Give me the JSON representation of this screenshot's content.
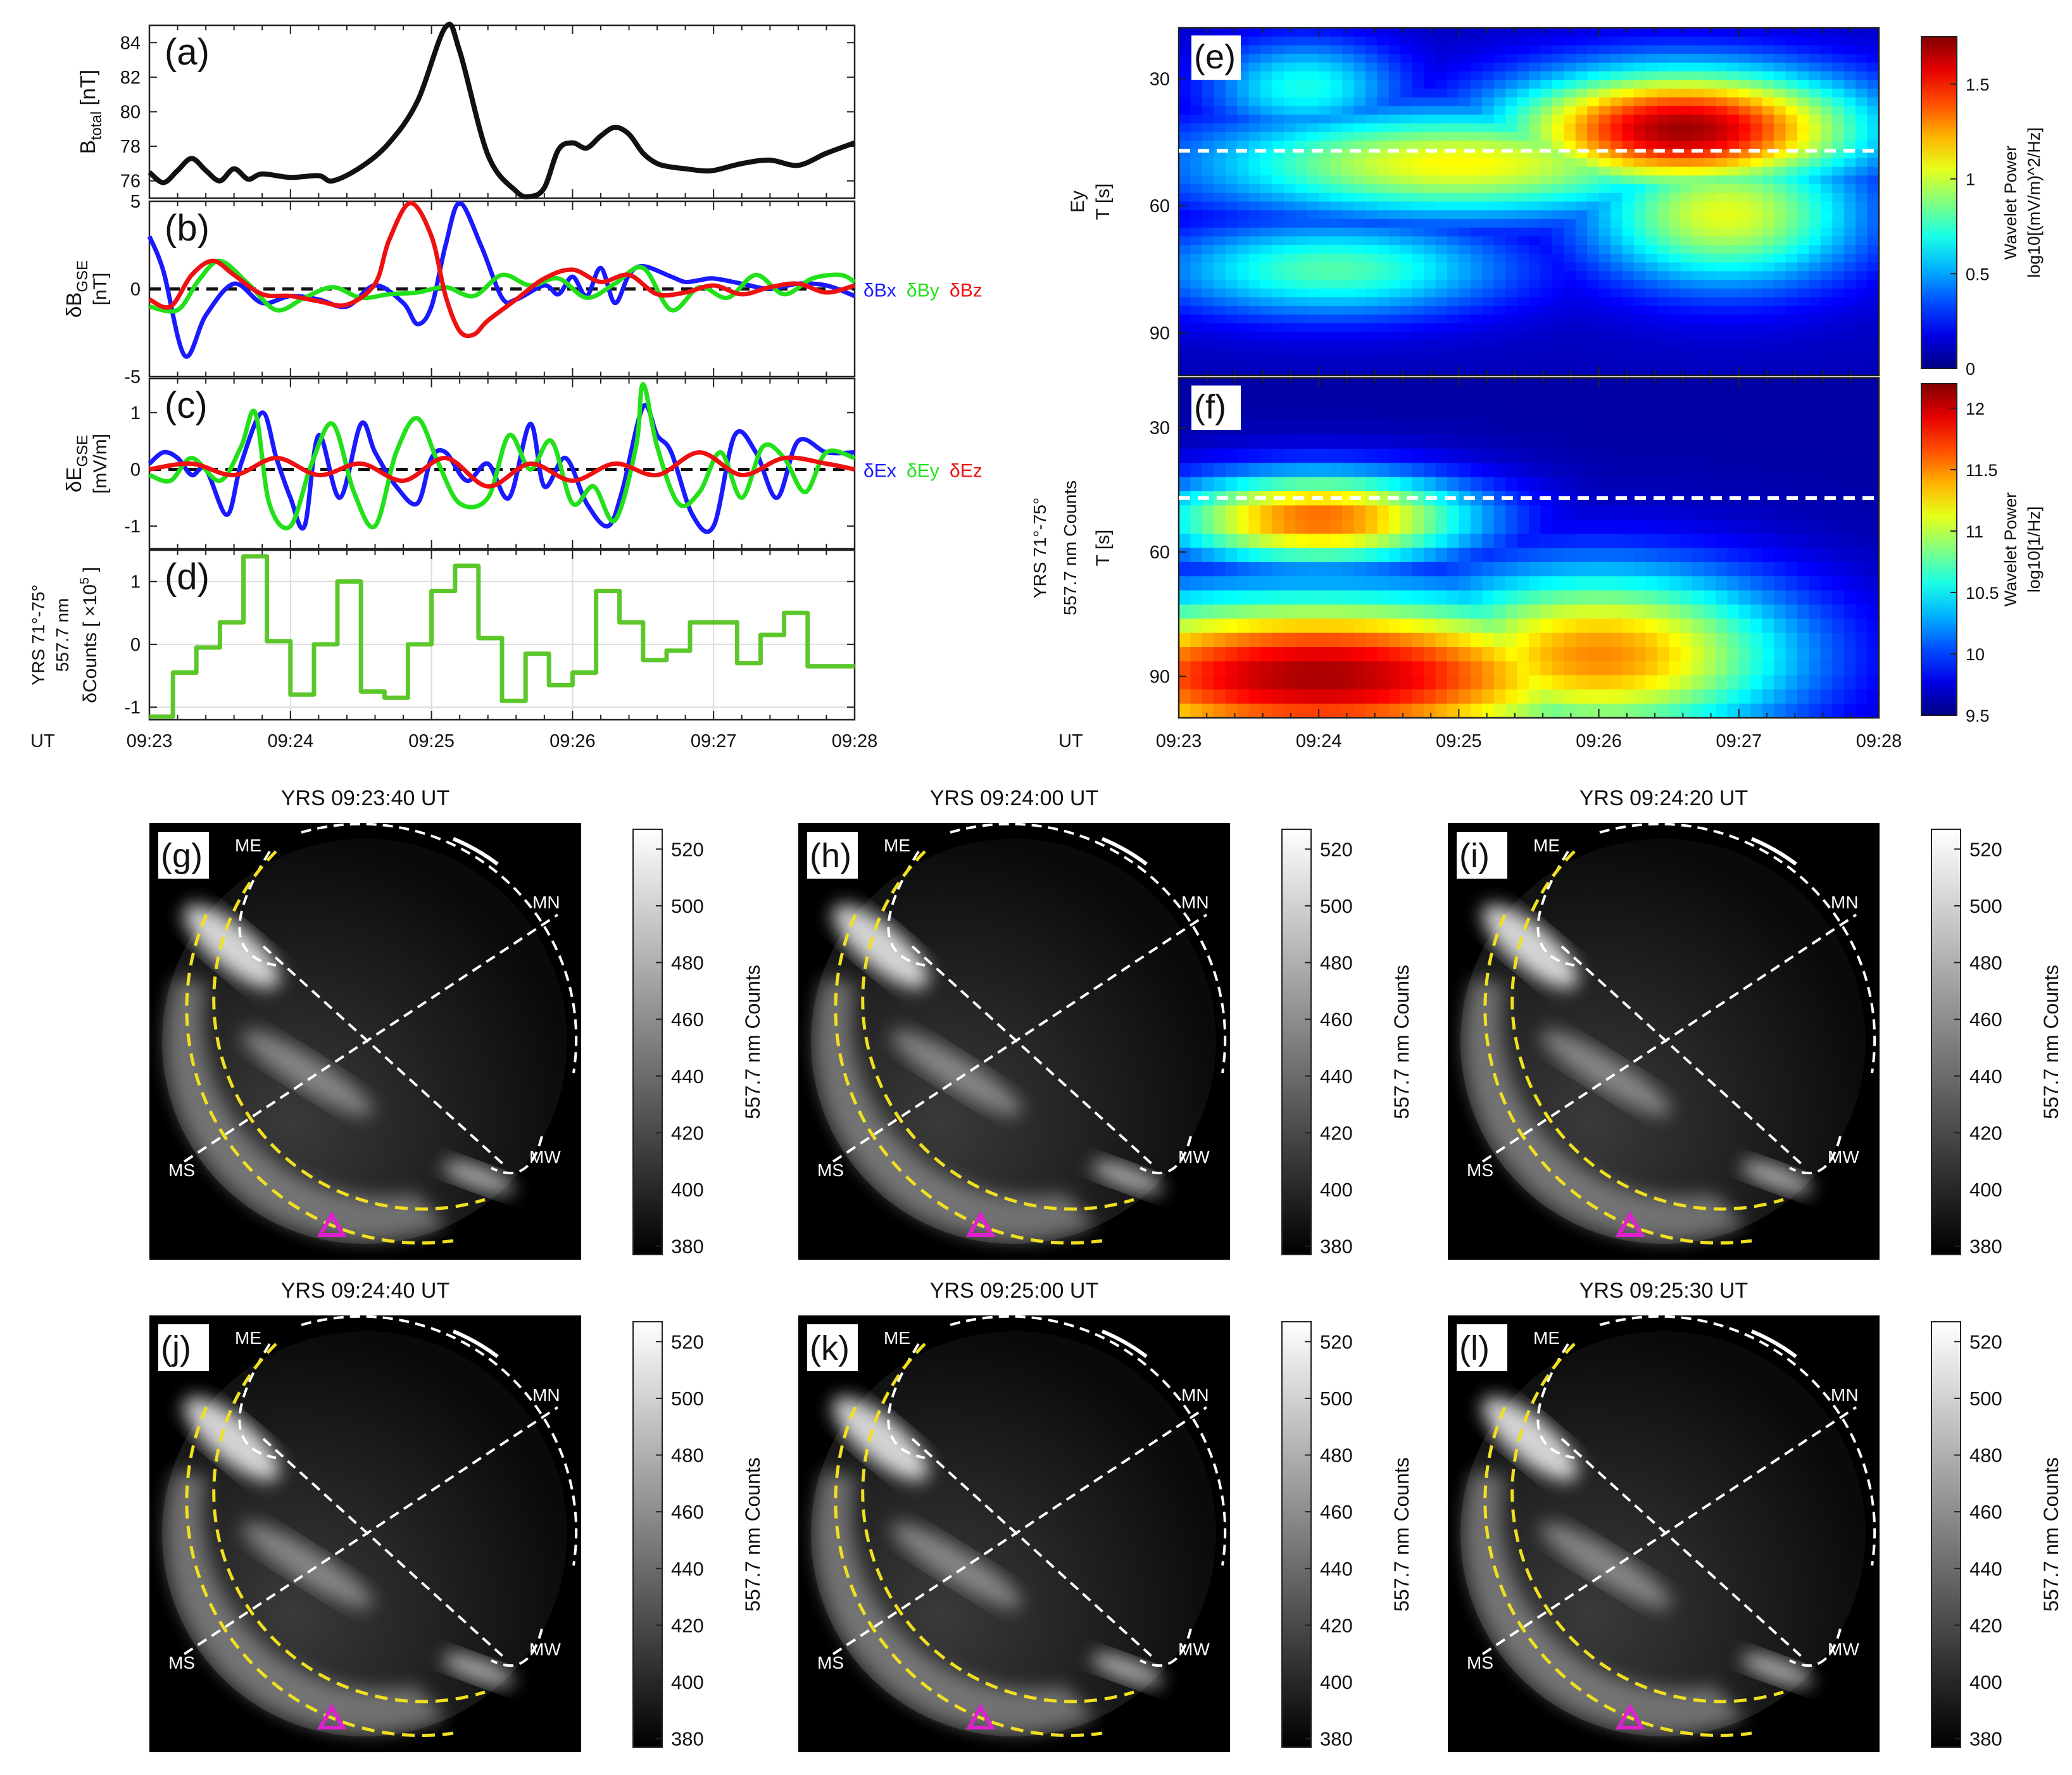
{
  "colors": {
    "black": "#111111",
    "blue": "#1a1aff",
    "green": "#22e01a",
    "red": "#ee1111",
    "counts_green": "#5cc72a",
    "yellow": "#f0e020",
    "magenta": "#e020d0"
  },
  "time_axis": {
    "ticks": [
      "09:23",
      "09:24",
      "09:25",
      "09:26",
      "09:27",
      "09:28"
    ],
    "label": "UT",
    "range_min": [
      0,
      5
    ]
  },
  "chart_data": [
    {
      "id": "a",
      "type": "line",
      "panel_label": "(a)",
      "ylabel": "B_total [nT]",
      "ylabel_main": "B",
      "ylabel_sub": "total",
      "ylabel_unit": "[nT]",
      "ylim": [
        75,
        85
      ],
      "yticks": [
        "76",
        "78",
        "80",
        "82",
        "84"
      ],
      "ytick_values": [
        76,
        78,
        80,
        82,
        84
      ],
      "series": [
        {
          "name": "Btotal",
          "color": "#111111",
          "x": [
            0,
            0.1,
            0.2,
            0.3,
            0.4,
            0.5,
            0.6,
            0.7,
            0.8,
            1.0,
            1.2,
            1.3,
            1.5,
            1.7,
            1.9,
            2.1,
            2.2,
            2.4,
            2.6,
            2.7,
            2.8,
            2.9,
            3.0,
            3.1,
            3.2,
            3.3,
            3.4,
            3.5,
            3.6,
            3.7,
            3.8,
            3.9,
            4.0,
            4.2,
            4.4,
            4.6,
            4.8,
            5.0
          ],
          "y": [
            76.5,
            75.9,
            76.6,
            77.3,
            76.6,
            76.0,
            76.7,
            76.1,
            76.4,
            76.2,
            76.3,
            76.0,
            76.8,
            78.2,
            80.6,
            84.9,
            83.5,
            77.5,
            75.4,
            75.1,
            75.6,
            77.8,
            78.2,
            77.9,
            78.6,
            79.1,
            78.7,
            77.6,
            77.0,
            76.8,
            76.7,
            76.6,
            76.6,
            77.0,
            77.2,
            76.9,
            77.6,
            78.2
          ]
        }
      ]
    },
    {
      "id": "b",
      "type": "line",
      "panel_label": "(b)",
      "ylabel": "δB_GSE [nT]",
      "ylabel_main": "δB",
      "ylabel_sub": "GSE",
      "ylabel_unit": "[nT]",
      "ylim": [
        -5,
        5
      ],
      "yticks": [
        "5",
        "0",
        "-5"
      ],
      "ytick_values": [
        5,
        0,
        -5
      ],
      "legend": [
        "δBx",
        "δBy",
        "δBz"
      ],
      "series": [
        {
          "name": "δBx",
          "color": "#1a1aff",
          "x": [
            0,
            0.1,
            0.25,
            0.4,
            0.6,
            0.8,
            1.0,
            1.2,
            1.4,
            1.6,
            1.8,
            1.9,
            2.0,
            2.1,
            2.2,
            2.35,
            2.5,
            2.6,
            2.8,
            2.9,
            3.0,
            3.1,
            3.2,
            3.3,
            3.4,
            3.5,
            3.7,
            3.8,
            3.9,
            4.0,
            4.2,
            4.4,
            4.6,
            4.8,
            5.0
          ],
          "y": [
            3.0,
            1.0,
            -3.8,
            -1.5,
            0.3,
            -0.8,
            -0.4,
            -0.6,
            -1.0,
            0.2,
            -0.8,
            -2.0,
            -1.0,
            2.5,
            4.9,
            2.5,
            -0.5,
            -0.6,
            0.2,
            -0.3,
            0.7,
            -0.4,
            1.2,
            -0.8,
            0.8,
            1.3,
            0.7,
            0.4,
            0.5,
            0.6,
            0.3,
            0.0,
            0.3,
            0.2,
            -0.4
          ]
        },
        {
          "name": "δBy",
          "color": "#22e01a",
          "x": [
            0,
            0.2,
            0.35,
            0.5,
            0.7,
            0.9,
            1.1,
            1.3,
            1.5,
            1.7,
            1.9,
            2.1,
            2.3,
            2.5,
            2.7,
            2.9,
            3.1,
            3.3,
            3.5,
            3.7,
            3.9,
            4.1,
            4.3,
            4.5,
            4.7,
            4.9,
            5.0
          ],
          "y": [
            -1.0,
            -1.2,
            0.5,
            1.6,
            0.3,
            -1.2,
            -0.5,
            0.1,
            -0.5,
            -0.3,
            -0.2,
            0.1,
            -0.4,
            0.8,
            0.2,
            0.6,
            -0.5,
            0.3,
            1.2,
            -1.2,
            0.1,
            -0.5,
            0.8,
            -0.3,
            0.6,
            0.8,
            0.4
          ]
        },
        {
          "name": "δBz",
          "color": "#ee1111",
          "x": [
            0,
            0.15,
            0.3,
            0.45,
            0.6,
            0.8,
            1.0,
            1.2,
            1.4,
            1.6,
            1.7,
            1.85,
            2.0,
            2.1,
            2.2,
            2.3,
            2.4,
            2.6,
            2.8,
            3.0,
            3.2,
            3.4,
            3.6,
            3.8,
            4.0,
            4.2,
            4.4,
            4.6,
            4.8,
            5.0
          ],
          "y": [
            -0.6,
            -1.0,
            0.8,
            1.6,
            0.8,
            -0.3,
            -0.4,
            -0.7,
            -0.9,
            0.3,
            2.8,
            4.9,
            3.0,
            -0.4,
            -2.4,
            -2.6,
            -1.8,
            -0.6,
            0.6,
            1.1,
            0.4,
            0.8,
            -0.3,
            -0.2,
            0.2,
            -0.3,
            0.1,
            0.3,
            -0.2,
            0.2
          ]
        }
      ]
    },
    {
      "id": "c",
      "type": "line",
      "panel_label": "(c)",
      "ylabel": "δE_GSE [mV/m]",
      "ylabel_main": "δE",
      "ylabel_sub": "GSE",
      "ylabel_unit": "[mV/m]",
      "ylim": [
        -1.4,
        1.6
      ],
      "yticks": [
        "1",
        "0",
        "-1"
      ],
      "ytick_values": [
        1,
        0,
        -1
      ],
      "legend": [
        "δEx",
        "δEy",
        "δEz"
      ],
      "series": [
        {
          "name": "δEx",
          "color": "#1a1aff",
          "x": [
            0,
            0.1,
            0.2,
            0.3,
            0.4,
            0.55,
            0.65,
            0.8,
            0.9,
            1.0,
            1.1,
            1.2,
            1.35,
            1.5,
            1.6,
            1.75,
            1.9,
            2.0,
            2.1,
            2.25,
            2.4,
            2.55,
            2.7,
            2.8,
            2.95,
            3.1,
            3.25,
            3.35,
            3.5,
            3.6,
            3.7,
            3.85,
            4.0,
            4.15,
            4.3,
            4.45,
            4.6,
            4.8,
            5.0
          ],
          "y": [
            0.1,
            0.3,
            0.2,
            -0.1,
            0.0,
            -0.8,
            0.1,
            1.0,
            0.2,
            -0.5,
            -1.0,
            0.6,
            -0.5,
            0.8,
            0.3,
            -0.3,
            -0.6,
            0.2,
            0.3,
            -0.2,
            0.1,
            -0.5,
            0.8,
            -0.3,
            0.2,
            -0.6,
            -1.0,
            -0.4,
            1.1,
            0.6,
            0.3,
            -0.8,
            -1.0,
            0.6,
            0.3,
            -0.5,
            0.5,
            0.3,
            0.3
          ]
        },
        {
          "name": "δEy",
          "color": "#22e01a",
          "x": [
            0,
            0.15,
            0.3,
            0.5,
            0.65,
            0.75,
            0.85,
            1.0,
            1.15,
            1.3,
            1.45,
            1.6,
            1.75,
            1.9,
            2.05,
            2.2,
            2.4,
            2.55,
            2.7,
            2.85,
            3.0,
            3.15,
            3.3,
            3.45,
            3.5,
            3.6,
            3.75,
            3.9,
            4.05,
            4.2,
            4.35,
            4.5,
            4.65,
            4.8,
            5.0
          ],
          "y": [
            -0.1,
            -0.2,
            0.2,
            -0.2,
            0.4,
            1.0,
            -0.6,
            -1.0,
            0.1,
            0.8,
            -0.4,
            -1.0,
            0.3,
            0.9,
            0.1,
            -0.6,
            -0.5,
            0.6,
            0.0,
            0.5,
            -0.6,
            -0.3,
            -0.9,
            0.4,
            1.5,
            0.4,
            -0.6,
            -0.4,
            0.3,
            -0.5,
            0.4,
            0.2,
            -0.4,
            0.3,
            0.2
          ]
        },
        {
          "name": "δEz",
          "color": "#ee1111",
          "x": [
            0,
            0.3,
            0.6,
            0.9,
            1.2,
            1.5,
            1.8,
            2.1,
            2.4,
            2.7,
            3.0,
            3.3,
            3.6,
            3.9,
            4.2,
            4.5,
            4.8,
            5.0
          ],
          "y": [
            0.0,
            0.1,
            -0.1,
            0.2,
            -0.1,
            0.1,
            -0.2,
            0.2,
            -0.3,
            0.1,
            -0.2,
            0.1,
            -0.1,
            0.3,
            -0.1,
            0.2,
            0.1,
            0.0
          ]
        }
      ]
    },
    {
      "id": "d",
      "type": "line",
      "panel_label": "(d)",
      "ylabel": "YRS 71°-75° 557.7 nm δCounts [×10^5]",
      "ylabel_line1": "YRS 71°-75°",
      "ylabel_line2": "557.7 nm",
      "ylabel_line3": "δCounts [ ×10",
      "ylim": [
        -1.2,
        1.5
      ],
      "yticks": [
        "1",
        "0",
        "-1"
      ],
      "ytick_values": [
        1,
        0,
        -1
      ],
      "step": true,
      "series": [
        {
          "name": "δCounts",
          "color": "#5cc72a",
          "x": [
            0,
            0.167,
            0.333,
            0.5,
            0.667,
            0.833,
            1.0,
            1.167,
            1.333,
            1.5,
            1.667,
            1.833,
            2.0,
            2.167,
            2.333,
            2.5,
            2.667,
            2.833,
            3.0,
            3.167,
            3.333,
            3.5,
            3.667,
            3.833,
            4.0,
            4.167,
            4.333,
            4.5,
            4.667,
            4.833,
            5.0
          ],
          "y": [
            -1.15,
            -0.45,
            -0.05,
            0.35,
            1.4,
            0.05,
            -0.8,
            0.0,
            1.0,
            -0.75,
            -0.85,
            0.0,
            0.85,
            1.25,
            0.1,
            -0.9,
            -0.15,
            -0.65,
            -0.45,
            0.85,
            0.35,
            -0.25,
            -0.1,
            0.35,
            0.35,
            -0.3,
            0.15,
            0.5,
            -0.35,
            -0.35,
            -0.35
          ]
        }
      ]
    },
    {
      "id": "e",
      "type": "heatmap",
      "panel_label": "(e)",
      "ylabel_line1": "Ey",
      "ylabel_line2": "T [s]",
      "yticks": [
        "30",
        "60",
        "90"
      ],
      "ytick_values": [
        30,
        60,
        90
      ],
      "ylim": [
        18,
        100
      ],
      "dashed_period_s": 47,
      "colorbar": {
        "title_line1": "Wavelet Power",
        "title_line2": "log10[(mV/m)^2/Hz]",
        "ticks": [
          "1.5",
          "1",
          "0.5",
          "0"
        ],
        "tick_values": [
          1.5,
          1,
          0.5,
          0
        ],
        "range": [
          0,
          1.75
        ]
      },
      "peaks": [
        {
          "t": 3.6,
          "period": 42,
          "power": 1.7,
          "st": 0.9,
          "sp": 10
        },
        {
          "t": 2.0,
          "period": 50,
          "power": 1.1,
          "st": 1.3,
          "sp": 9
        },
        {
          "t": 3.9,
          "period": 62,
          "power": 1.05,
          "st": 0.7,
          "sp": 12
        },
        {
          "t": 0.9,
          "period": 32,
          "power": 0.7,
          "st": 0.5,
          "sp": 8
        },
        {
          "t": 1.1,
          "period": 75,
          "power": 0.8,
          "st": 0.9,
          "sp": 8
        }
      ]
    },
    {
      "id": "f",
      "type": "heatmap",
      "panel_label": "(f)",
      "ylabel_line1": "YRS 71°-75°",
      "ylabel_line2": "557.7 nm Counts",
      "ylabel_line3": "T [s]",
      "yticks": [
        "30",
        "60",
        "90"
      ],
      "ytick_values": [
        30,
        60,
        90
      ],
      "ylim": [
        18,
        100
      ],
      "dashed_period_s": 47,
      "colorbar": {
        "title_line1": "Wavelet Power",
        "title_line2": "log10[1/Hz]",
        "ticks": [
          "12",
          "11.5",
          "11",
          "10.5",
          "10",
          "9.5"
        ],
        "tick_values": [
          12,
          11.5,
          11,
          10.5,
          10,
          9.5
        ],
        "range": [
          9.5,
          12.2
        ]
      },
      "peaks": [
        {
          "t": 1.0,
          "period": 90,
          "power": 12.1,
          "st": 1.6,
          "sp": 14
        },
        {
          "t": 1.0,
          "period": 52,
          "power": 11.6,
          "st": 0.8,
          "sp": 8
        },
        {
          "t": 3.0,
          "period": 85,
          "power": 11.5,
          "st": 1.0,
          "sp": 15
        }
      ]
    }
  ],
  "image_panels": [
    {
      "label": "(g)",
      "title": "YRS   09:23:40 UT"
    },
    {
      "label": "(h)",
      "title": "YRS   09:24:00 UT"
    },
    {
      "label": "(i)",
      "title": "YRS   09:24:20 UT"
    },
    {
      "label": "(j)",
      "title": "YRS   09:24:40 UT"
    },
    {
      "label": "(k)",
      "title": "YRS   09:25:00 UT"
    },
    {
      "label": "(l)",
      "title": "YRS   09:25:30 UT"
    }
  ],
  "image_common": {
    "compass": [
      "ME",
      "MN",
      "MS",
      "MW"
    ],
    "colorbar_label": "557.7 nm Counts",
    "colorbar_ticks": [
      "520",
      "500",
      "480",
      "460",
      "440",
      "420",
      "400",
      "380"
    ],
    "colorbar_range": [
      377,
      527
    ]
  }
}
